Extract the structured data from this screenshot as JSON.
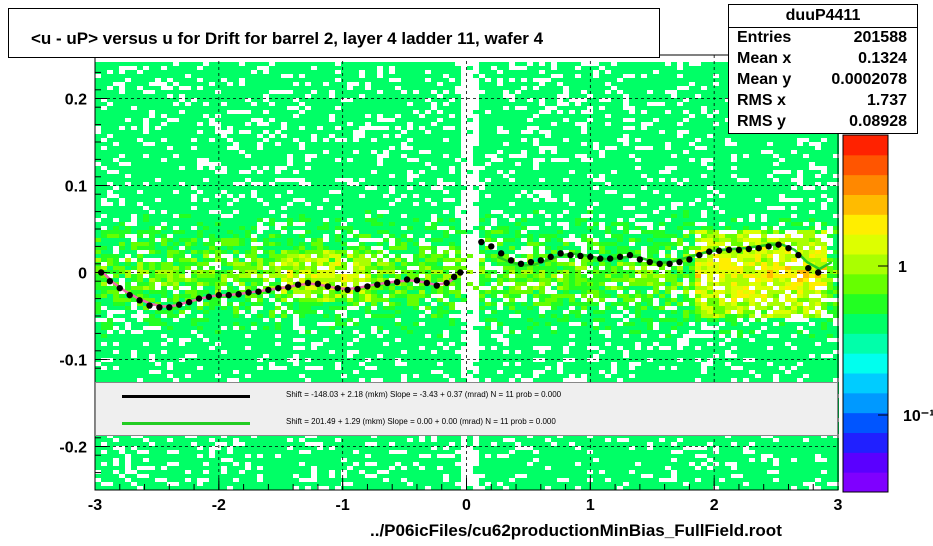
{
  "title": "<u - uP>       versus   u for Drift for barrel 2, layer 4 ladder 11, wafer 4",
  "footer": "../P06icFiles/cu62productionMinBias_FullField.root",
  "stats": {
    "name": "duuP4411",
    "rows": [
      {
        "key": "Entries",
        "value": "201588"
      },
      {
        "key": "Mean x",
        "value": "0.1324"
      },
      {
        "key": "Mean y",
        "value": "0.0002078"
      },
      {
        "key": "RMS x",
        "value": "1.737"
      },
      {
        "key": "RMS y",
        "value": "0.08928"
      }
    ]
  },
  "legend": [
    {
      "color": "#000000",
      "text": "Shift =  -148.03 + 2.18 (mkm) Slope =    -3.43 + 0.37 (mrad)  N = 11 prob = 0.000"
    },
    {
      "color": "#22cc22",
      "text": "Shift =   201.49 + 1.29 (mkm) Slope =     0.00 + 0.00 (mrad)  N = 11 prob = 0.000"
    }
  ],
  "colors": {
    "black_series": "#000000",
    "green_series": "#22cc22",
    "palette": [
      "#7f00ff",
      "#5a00ff",
      "#2020ff",
      "#0055ff",
      "#0099ff",
      "#00ccff",
      "#00ffee",
      "#00ffaa",
      "#00ff66",
      "#22ff22",
      "#66ff00",
      "#aaff00",
      "#ddff00",
      "#ffee00",
      "#ffbb00",
      "#ff8800",
      "#ff5500",
      "#ff2200"
    ]
  },
  "chart_data": {
    "type": "heatmap",
    "xlim": [
      -3,
      3
    ],
    "ylim": [
      -0.25,
      0.25
    ],
    "x_ticks": [
      "-3",
      "-2",
      "-1",
      "0",
      "1",
      "2",
      "3"
    ],
    "y_ticks": [
      "-0.2",
      "-0.1",
      "0",
      "0.1",
      "0.2"
    ],
    "colorbar_ticks": [
      "1",
      "10⁻¹"
    ],
    "grid": true,
    "series": [
      {
        "kind": "profile-points",
        "x": [
          -2.95,
          -2.88,
          -2.8,
          -2.72,
          -2.64,
          -2.56,
          -2.48,
          -2.4,
          -2.32,
          -2.24,
          -2.16,
          -2.08,
          -2.0,
          -1.92,
          -1.84,
          -1.76,
          -1.68,
          -1.6,
          -1.52,
          -1.44,
          -1.36,
          -1.28,
          -1.2,
          -1.12,
          -1.04,
          -0.96,
          -0.88,
          -0.8,
          -0.72,
          -0.64,
          -0.56,
          -0.48,
          -0.4,
          -0.32,
          -0.24,
          -0.16,
          -0.1,
          -0.05,
          0.12,
          0.2,
          0.28,
          0.36,
          0.44,
          0.52,
          0.6,
          0.68,
          0.76,
          0.84,
          0.92,
          1.0,
          1.08,
          1.16,
          1.24,
          1.32,
          1.4,
          1.48,
          1.56,
          1.64,
          1.72,
          1.8,
          1.88,
          1.96,
          2.04,
          2.12,
          2.2,
          2.28,
          2.36,
          2.44,
          2.52,
          2.6,
          2.68,
          2.76,
          2.84
        ],
        "y": [
          0.0,
          -0.01,
          -0.018,
          -0.026,
          -0.032,
          -0.038,
          -0.04,
          -0.04,
          -0.037,
          -0.034,
          -0.03,
          -0.028,
          -0.026,
          -0.026,
          -0.025,
          -0.023,
          -0.022,
          -0.02,
          -0.018,
          -0.017,
          -0.014,
          -0.012,
          -0.013,
          -0.016,
          -0.018,
          -0.02,
          -0.019,
          -0.016,
          -0.014,
          -0.012,
          -0.011,
          -0.008,
          -0.009,
          -0.012,
          -0.015,
          -0.012,
          -0.005,
          0.0,
          0.035,
          0.03,
          0.022,
          0.014,
          0.01,
          0.012,
          0.014,
          0.018,
          0.022,
          0.02,
          0.019,
          0.018,
          0.016,
          0.016,
          0.018,
          0.02,
          0.015,
          0.012,
          0.01,
          0.01,
          0.012,
          0.015,
          0.02,
          0.024,
          0.025,
          0.026,
          0.026,
          0.027,
          0.028,
          0.03,
          0.032,
          0.028,
          0.02,
          0.005,
          0.0
        ]
      },
      {
        "kind": "fit-green",
        "x": [
          0.25,
          0.35,
          0.45,
          0.55,
          0.65,
          0.75,
          0.85,
          0.95,
          1.05,
          1.15,
          1.25,
          1.35,
          1.45,
          1.55,
          1.65,
          1.75,
          1.85,
          1.95,
          2.05,
          2.15,
          2.25,
          2.35,
          2.45,
          2.55,
          2.65,
          2.75,
          2.85,
          2.95
        ],
        "y": [
          0.018,
          0.012,
          0.008,
          0.009,
          0.014,
          0.019,
          0.022,
          0.02,
          0.017,
          0.015,
          0.017,
          0.019,
          0.015,
          0.011,
          0.012,
          0.016,
          0.02,
          0.024,
          0.026,
          0.027,
          0.028,
          0.03,
          0.032,
          0.032,
          0.026,
          0.012,
          0.004,
          0.012
        ]
      },
      {
        "kind": "fit-black",
        "x": [
          -2.95,
          -2.85,
          -2.75,
          -2.65,
          -2.55,
          -2.45,
          -2.35,
          -2.25,
          -2.15,
          -2.05,
          -1.95,
          -1.85,
          -1.75,
          -1.65,
          -1.55,
          -1.45,
          -1.35,
          -1.25,
          -1.15,
          -1.05,
          -0.95,
          -0.85,
          -0.75,
          -0.65,
          -0.55,
          -0.45,
          -0.35,
          -0.25,
          -0.15,
          -0.08
        ],
        "y": [
          0.002,
          -0.012,
          -0.022,
          -0.03,
          -0.036,
          -0.039,
          -0.038,
          -0.034,
          -0.03,
          -0.027,
          -0.026,
          -0.025,
          -0.023,
          -0.021,
          -0.019,
          -0.017,
          -0.014,
          -0.013,
          -0.015,
          -0.018,
          -0.019,
          -0.017,
          -0.014,
          -0.012,
          -0.01,
          -0.009,
          -0.011,
          -0.014,
          -0.012,
          -0.004
        ]
      }
    ]
  }
}
